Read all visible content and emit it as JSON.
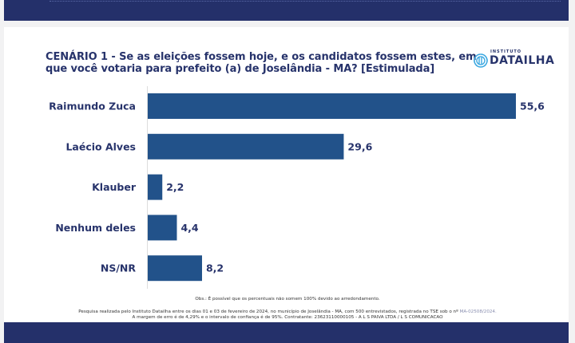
{
  "brand": {
    "logo_small": "INSTITUTO",
    "logo_name": "DATAILHA",
    "colors": {
      "navy": "#24306a",
      "bar": "#22528a",
      "text": "#27336b",
      "logo_icon": "#3aa7e0"
    }
  },
  "chart_data": {
    "type": "bar",
    "orientation": "horizontal",
    "title": "CENÁRIO 1 - Se as eleições fossem hoje, e os candidatos fossem estes, em que você votaria para prefeito (a) de Joselândia - MA? [Estimulada]",
    "categories": [
      "Raimundo Zuca",
      "Laécio Alves",
      "Klauber",
      "Nenhum deles",
      "NS/NR"
    ],
    "values": [
      55.6,
      29.6,
      2.2,
      4.4,
      8.2
    ],
    "value_labels": [
      "55,6",
      "29,6",
      "2,2",
      "4,4",
      "8,2"
    ],
    "xlabel": "",
    "ylabel": "",
    "xlim": [
      0,
      60
    ],
    "grid": false,
    "legend": "none"
  },
  "notes": {
    "obs": "Obs.: É possível que os percentuais não somem 100% devido ao arredondamento.",
    "footer_line1": "Pesquisa realizada pelo Instituto Datailha entre os dias 01 e 03 de fevereiro de 2024, no município de Joselândia - MA, com 500 entrevistados, registrada no TSE sob o nº",
    "footer_registration": "MA-02508/2024.",
    "footer_line2": "A margem de erro é de 4,29% e o intervalo de confiança é de 95%.  Contratante: 23623110000105 - A L S PAIVA LTDA / L S COMUNICACAO"
  }
}
